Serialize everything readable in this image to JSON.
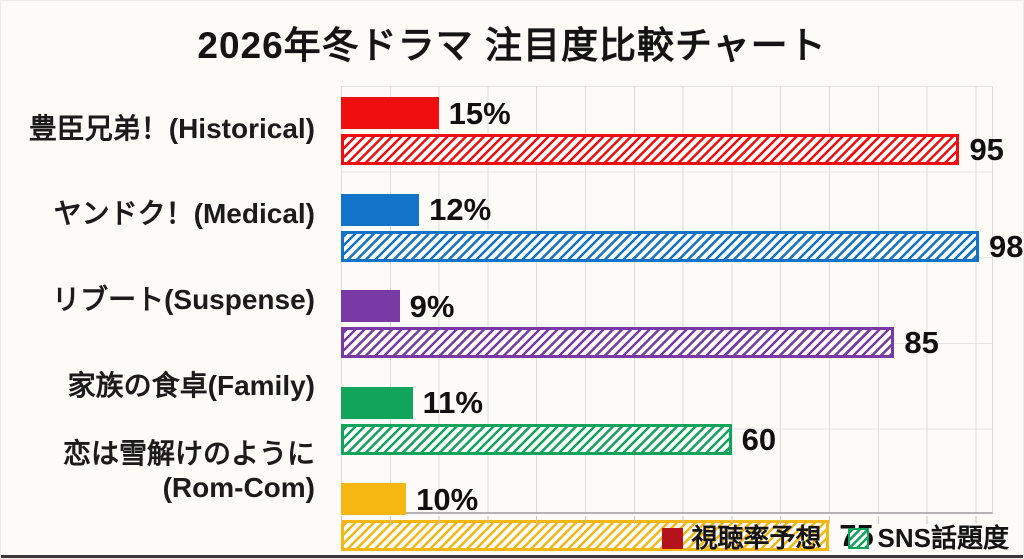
{
  "page": {
    "background": "#fcfbf8",
    "bottom_edge_color": "#3a3a3a",
    "gridline_color": "#dcdcdc"
  },
  "chart_data": {
    "type": "bar",
    "orientation": "horizontal",
    "title": "2026年冬ドラマ 注目度比較チャート",
    "categories": [
      "豊臣兄弟！(Historical)",
      "ヤンドク！(Medical)",
      "リブート(Suspense)",
      "家族の食卓(Family)",
      "恋は雪解けのように (Rom-Com)"
    ],
    "category_colors": [
      "#ef0e0e",
      "#1273c8",
      "#7a3aa5",
      "#13a45b",
      "#f7b713"
    ],
    "series": [
      {
        "name": "視聴率予想",
        "pattern": "solid",
        "values": [
          15,
          12,
          9,
          11,
          10
        ],
        "labels": [
          "15%",
          "12%",
          "9%",
          "11%",
          "10%"
        ]
      },
      {
        "name": "SNS話題度",
        "pattern": "hatched",
        "values": [
          95,
          98,
          85,
          60,
          75
        ],
        "labels": [
          "95",
          "98",
          "85",
          "60",
          "75"
        ]
      }
    ],
    "xlim": [
      0,
      100
    ],
    "grid": true,
    "legend": {
      "position": "bottom-right",
      "entries": [
        {
          "label": "視聴率予想",
          "swatch": "solid",
          "color": "#b5121b"
        },
        {
          "label": "SNS話題度",
          "swatch": "hatched",
          "color": "#13a45b"
        }
      ]
    }
  }
}
